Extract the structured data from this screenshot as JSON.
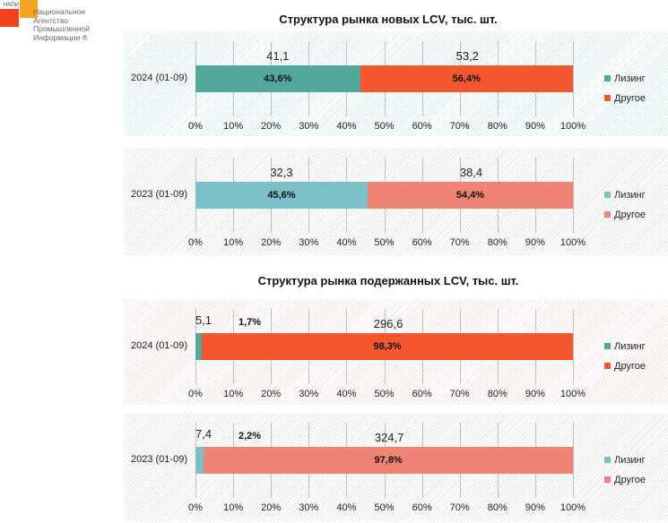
{
  "logo": {
    "abbr": "НАПИ",
    "name": "Национальное Агентство Промышленной Информации ®"
  },
  "titles": [
    "Структура рынка новых LCV, тыс. шт.",
    "Структура рынка подержанных LCV, тыс. шт."
  ],
  "chart_data": [
    {
      "type": "bar",
      "stacked": true,
      "orientation": "horizontal",
      "category": "2024 (01-09)",
      "series": [
        {
          "name": "Лизинг",
          "percent": 43.6,
          "label": "43,6%",
          "value_label": "41,1",
          "color": "#52a89b"
        },
        {
          "name": "Другое",
          "percent": 56.4,
          "label": "56,4%",
          "value_label": "53,2",
          "color": "#f4562e"
        }
      ],
      "xlim": [
        0,
        100
      ],
      "ticks": [
        "0%",
        "10%",
        "20%",
        "30%",
        "40%",
        "50%",
        "60%",
        "70%",
        "80%",
        "90%",
        "100%"
      ],
      "bg": "hatch-teal"
    },
    {
      "type": "bar",
      "stacked": true,
      "orientation": "horizontal",
      "category": "2023 (01-09)",
      "series": [
        {
          "name": "Лизинг",
          "percent": 45.6,
          "label": "45,6%",
          "value_label": "32,3",
          "color": "#7bbfc8"
        },
        {
          "name": "Другое",
          "percent": 54.4,
          "label": "54,4%",
          "value_label": "38,4",
          "color": "#ef8474"
        }
      ],
      "xlim": [
        0,
        100
      ],
      "ticks": [
        "0%",
        "10%",
        "20%",
        "30%",
        "40%",
        "50%",
        "60%",
        "70%",
        "80%",
        "90%",
        "100%"
      ],
      "bg": "hatch-gray"
    },
    {
      "type": "bar",
      "stacked": true,
      "orientation": "horizontal",
      "category": "2024 (01-09)",
      "series": [
        {
          "name": "Лизинг",
          "percent": 1.7,
          "label": "1,7%",
          "value_label": "5,1",
          "color": "#52a89b"
        },
        {
          "name": "Другое",
          "percent": 98.3,
          "label": "98,3%",
          "value_label": "296,6",
          "color": "#f4562e"
        }
      ],
      "xlim": [
        0,
        100
      ],
      "ticks": [
        "0%",
        "10%",
        "20%",
        "30%",
        "40%",
        "50%",
        "60%",
        "70%",
        "80%",
        "90%",
        "100%"
      ],
      "bg": "hatch-warm"
    },
    {
      "type": "bar",
      "stacked": true,
      "orientation": "horizontal",
      "category": "2023 (01-09)",
      "series": [
        {
          "name": "Лизинг",
          "percent": 2.2,
          "label": "2,2%",
          "value_label": "7,4",
          "color": "#7bbfc8"
        },
        {
          "name": "Другое",
          "percent": 97.8,
          "label": "97,8%",
          "value_label": "324,7",
          "color": "#ef8474"
        }
      ],
      "xlim": [
        0,
        100
      ],
      "ticks": [
        "0%",
        "10%",
        "20%",
        "30%",
        "40%",
        "50%",
        "60%",
        "70%",
        "80%",
        "90%",
        "100%"
      ],
      "bg": "hatch-gray"
    }
  ]
}
